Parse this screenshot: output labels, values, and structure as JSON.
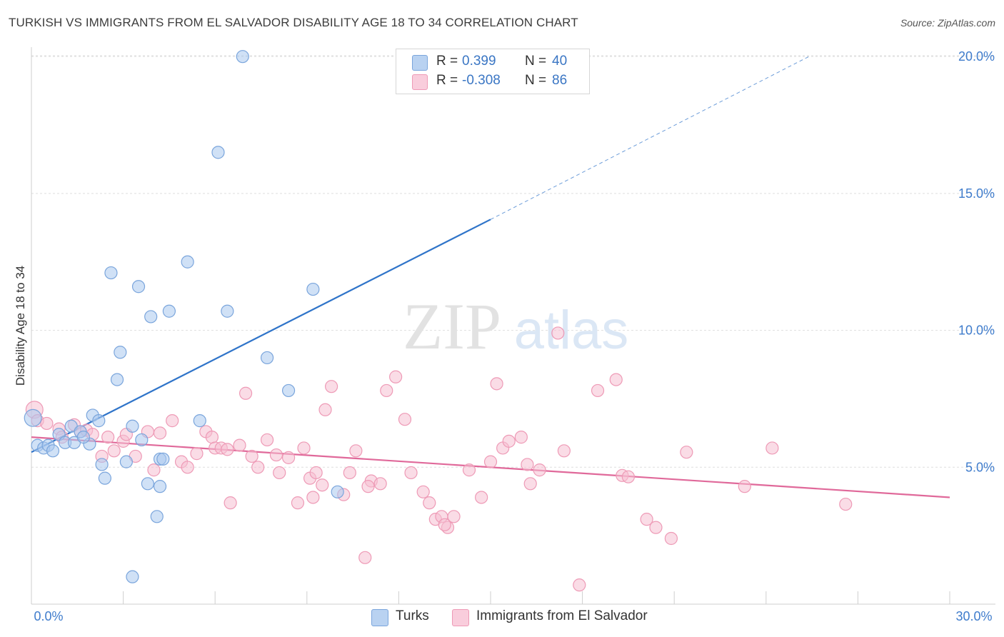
{
  "header": {
    "title": "TURKISH VS IMMIGRANTS FROM EL SALVADOR DISABILITY AGE 18 TO 34 CORRELATION CHART",
    "source": "Source: ZipAtlas.com"
  },
  "watermark": {
    "left": "ZIP",
    "right": "atlas"
  },
  "colors": {
    "turks_fill": "#a9c8ef",
    "turks_stroke": "#7aa5dc",
    "turks_line": "#2f74c9",
    "salvador_fill": "#f6bfd1",
    "salvador_stroke": "#ee9ab6",
    "salvador_line": "#e0699a",
    "grid": "#dedede",
    "tick_text": "#3f7ccc"
  },
  "legend": {
    "rows": [
      {
        "r_label": "R =",
        "r_value": "0.399",
        "n_label": "N =",
        "n_value": "40"
      },
      {
        "r_label": "R =",
        "r_value": "-0.308",
        "n_label": "N =",
        "n_value": "86"
      }
    ]
  },
  "bottom_legend": {
    "turks": "Turks",
    "salvador": "Immigrants from El Salvador"
  },
  "chart_data": {
    "type": "scatter",
    "title": "TURKISH VS IMMIGRANTS FROM EL SALVADOR DISABILITY AGE 18 TO 34 CORRELATION CHART",
    "xlabel": "",
    "ylabel": "Disability Age 18 to 34",
    "xlim": [
      0,
      30
    ],
    "ylim": [
      0,
      20.5
    ],
    "x_ticks_labeled": [
      "0.0%",
      "30.0%"
    ],
    "y_ticks": [
      5,
      10,
      15,
      20
    ],
    "y_tick_labels": [
      "5.0%",
      "10.0%",
      "15.0%",
      "20.0%"
    ],
    "grid": true,
    "legend_placement": "top-center",
    "series": [
      {
        "name": "Turks",
        "r": 0.399,
        "n": 40,
        "trend": {
          "x0": 0,
          "y0": 5.55,
          "x1": 15,
          "y1": 14.05,
          "dashed_to_x": 25.4,
          "dashed_to_y": 20.0
        },
        "points": [
          [
            0.05,
            6.8,
            1.4
          ],
          [
            0.2,
            5.8,
            1
          ],
          [
            0.4,
            5.7,
            1
          ],
          [
            0.55,
            5.8,
            1
          ],
          [
            0.9,
            6.2,
            1
          ],
          [
            1.1,
            5.9,
            1
          ],
          [
            1.3,
            6.5,
            1
          ],
          [
            1.4,
            5.9,
            1
          ],
          [
            1.6,
            6.3,
            1
          ],
          [
            1.9,
            5.85,
            1
          ],
          [
            2.0,
            6.9,
            1
          ],
          [
            2.2,
            6.7,
            1
          ],
          [
            2.3,
            5.1,
            1
          ],
          [
            2.4,
            4.6,
            1
          ],
          [
            2.6,
            12.1,
            1
          ],
          [
            2.8,
            8.2,
            1
          ],
          [
            2.9,
            9.2,
            1
          ],
          [
            3.1,
            5.2,
            1
          ],
          [
            3.3,
            1.0,
            1
          ],
          [
            3.3,
            6.5,
            1
          ],
          [
            3.5,
            11.6,
            1
          ],
          [
            3.6,
            6.0,
            1
          ],
          [
            3.8,
            4.4,
            1
          ],
          [
            3.9,
            10.5,
            1
          ],
          [
            4.1,
            3.2,
            1
          ],
          [
            4.2,
            5.3,
            1
          ],
          [
            4.3,
            5.3,
            1
          ],
          [
            4.5,
            10.7,
            1
          ],
          [
            4.2,
            4.3,
            1
          ],
          [
            5.1,
            12.5,
            1
          ],
          [
            5.5,
            6.7,
            1
          ],
          [
            6.1,
            16.5,
            1
          ],
          [
            6.4,
            10.7,
            1
          ],
          [
            6.9,
            20.0,
            1
          ],
          [
            7.7,
            9.0,
            1
          ],
          [
            8.4,
            7.8,
            1
          ],
          [
            9.2,
            11.5,
            1
          ],
          [
            10.0,
            4.1,
            1
          ],
          [
            1.7,
            6.1,
            1
          ],
          [
            0.7,
            5.6,
            1
          ]
        ]
      },
      {
        "name": "Immigrants from El Salvador",
        "r": -0.308,
        "n": 86,
        "trend": {
          "x0": 0,
          "y0": 6.1,
          "x1": 30,
          "y1": 3.9
        },
        "points": [
          [
            0.1,
            7.1,
            1.4
          ],
          [
            0.2,
            6.7,
            1
          ],
          [
            0.5,
            6.6,
            1
          ],
          [
            0.9,
            6.4,
            1
          ],
          [
            1.0,
            6.1,
            1
          ],
          [
            1.4,
            6.55,
            1
          ],
          [
            1.6,
            6.3,
            1
          ],
          [
            1.8,
            6.35,
            1
          ],
          [
            2.0,
            6.2,
            1
          ],
          [
            2.3,
            5.4,
            1
          ],
          [
            2.5,
            6.1,
            1
          ],
          [
            2.7,
            5.6,
            1
          ],
          [
            3.0,
            5.95,
            1
          ],
          [
            3.1,
            6.2,
            1
          ],
          [
            3.4,
            5.4,
            1
          ],
          [
            3.8,
            6.3,
            1
          ],
          [
            4.0,
            4.9,
            1
          ],
          [
            4.2,
            6.25,
            1
          ],
          [
            4.6,
            6.7,
            1
          ],
          [
            4.9,
            5.2,
            1
          ],
          [
            5.1,
            5.0,
            1
          ],
          [
            5.4,
            5.5,
            1
          ],
          [
            5.7,
            6.3,
            1
          ],
          [
            5.9,
            6.1,
            1
          ],
          [
            6.0,
            5.7,
            1
          ],
          [
            6.2,
            5.7,
            1
          ],
          [
            6.4,
            5.65,
            1
          ],
          [
            6.5,
            3.7,
            1
          ],
          [
            6.8,
            5.8,
            1
          ],
          [
            7.0,
            7.7,
            1
          ],
          [
            7.2,
            5.4,
            1
          ],
          [
            7.4,
            5.0,
            1
          ],
          [
            7.7,
            6.0,
            1
          ],
          [
            8.0,
            5.45,
            1
          ],
          [
            8.1,
            4.8,
            1
          ],
          [
            8.4,
            5.35,
            1
          ],
          [
            8.7,
            3.7,
            1
          ],
          [
            8.9,
            5.7,
            1
          ],
          [
            9.1,
            4.6,
            1
          ],
          [
            9.3,
            4.8,
            1
          ],
          [
            9.5,
            4.35,
            1
          ],
          [
            9.6,
            7.1,
            1
          ],
          [
            9.8,
            7.95,
            1
          ],
          [
            10.2,
            4.0,
            1
          ],
          [
            10.4,
            4.8,
            1
          ],
          [
            10.6,
            5.6,
            1
          ],
          [
            10.9,
            1.7,
            1
          ],
          [
            11.1,
            4.5,
            1
          ],
          [
            11.4,
            4.4,
            1
          ],
          [
            11.6,
            7.8,
            1
          ],
          [
            11.9,
            8.3,
            1
          ],
          [
            12.2,
            6.75,
            1
          ],
          [
            12.4,
            4.8,
            1
          ],
          [
            12.8,
            4.1,
            1
          ],
          [
            13.0,
            3.7,
            1
          ],
          [
            13.2,
            3.1,
            1
          ],
          [
            13.4,
            3.2,
            1
          ],
          [
            13.6,
            2.8,
            1
          ],
          [
            13.8,
            3.2,
            1
          ],
          [
            14.3,
            4.9,
            1
          ],
          [
            14.7,
            3.9,
            1
          ],
          [
            15.2,
            8.05,
            1
          ],
          [
            15.4,
            5.7,
            1
          ],
          [
            15.6,
            5.95,
            1
          ],
          [
            16.0,
            6.1,
            1
          ],
          [
            16.2,
            5.1,
            1
          ],
          [
            16.3,
            4.4,
            1
          ],
          [
            16.6,
            4.9,
            1
          ],
          [
            17.2,
            9.9,
            1
          ],
          [
            17.4,
            5.6,
            1
          ],
          [
            17.9,
            0.7,
            1
          ],
          [
            18.5,
            7.8,
            1
          ],
          [
            19.1,
            8.2,
            1
          ],
          [
            19.3,
            4.7,
            1
          ],
          [
            19.5,
            4.65,
            1
          ],
          [
            20.1,
            3.1,
            1
          ],
          [
            20.4,
            2.8,
            1
          ],
          [
            20.9,
            2.4,
            1
          ],
          [
            21.4,
            5.55,
            1
          ],
          [
            23.3,
            4.3,
            1
          ],
          [
            24.2,
            5.7,
            1
          ],
          [
            26.6,
            3.65,
            1
          ],
          [
            15.0,
            5.2,
            1
          ],
          [
            11.0,
            4.3,
            1
          ],
          [
            9.2,
            3.9,
            1
          ],
          [
            13.5,
            2.9,
            1
          ]
        ]
      }
    ]
  }
}
